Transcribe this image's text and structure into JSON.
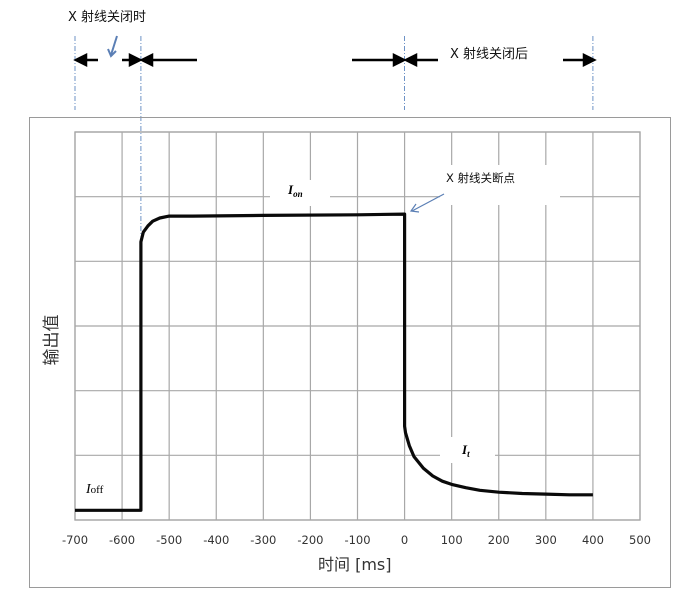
{
  "chart_data": {
    "type": "line",
    "title": "",
    "xlabel": "时间 [ms]",
    "ylabel": "输出值",
    "xlim": [
      -700,
      500
    ],
    "ylim": [
      0,
      6
    ],
    "xticks": [
      -700,
      -600,
      -500,
      -400,
      -300,
      -200,
      -100,
      0,
      100,
      200,
      300,
      400,
      500
    ],
    "xtick_labels": [
      "-700",
      "-600",
      "-500",
      "-400",
      "-300",
      "-200",
      "-100",
      "0",
      "100",
      "200",
      "300",
      "400",
      "500"
    ],
    "y_gridlines": [
      1,
      2,
      3,
      4,
      5,
      6
    ],
    "grid": true,
    "series": [
      {
        "name": "输出值",
        "x": [
          -700,
          -560,
          -560,
          -555,
          -545,
          -535,
          -520,
          -500,
          -450,
          -300,
          -100,
          0,
          0,
          2,
          10,
          20,
          40,
          60,
          80,
          100,
          130,
          160,
          200,
          250,
          300,
          350,
          400
        ],
        "y": [
          0.15,
          0.15,
          4.3,
          4.45,
          4.55,
          4.62,
          4.67,
          4.7,
          4.7,
          4.71,
          4.72,
          4.73,
          1.45,
          1.35,
          1.15,
          0.98,
          0.8,
          0.68,
          0.6,
          0.55,
          0.5,
          0.46,
          0.43,
          0.41,
          0.4,
          0.39,
          0.39
        ]
      }
    ],
    "annotations": {
      "i_off": {
        "main": "I",
        "sub": "off"
      },
      "i_on": {
        "main": "I",
        "sub": "on"
      },
      "i_t": {
        "main": "I",
        "sub": "t"
      },
      "shutoff_point": "X 射线关断点",
      "xray_off_moment": "X 射线关闭时",
      "after_xray_off": "X 射线关闭后"
    },
    "markers_x": [
      -700,
      -560,
      0,
      400
    ]
  }
}
